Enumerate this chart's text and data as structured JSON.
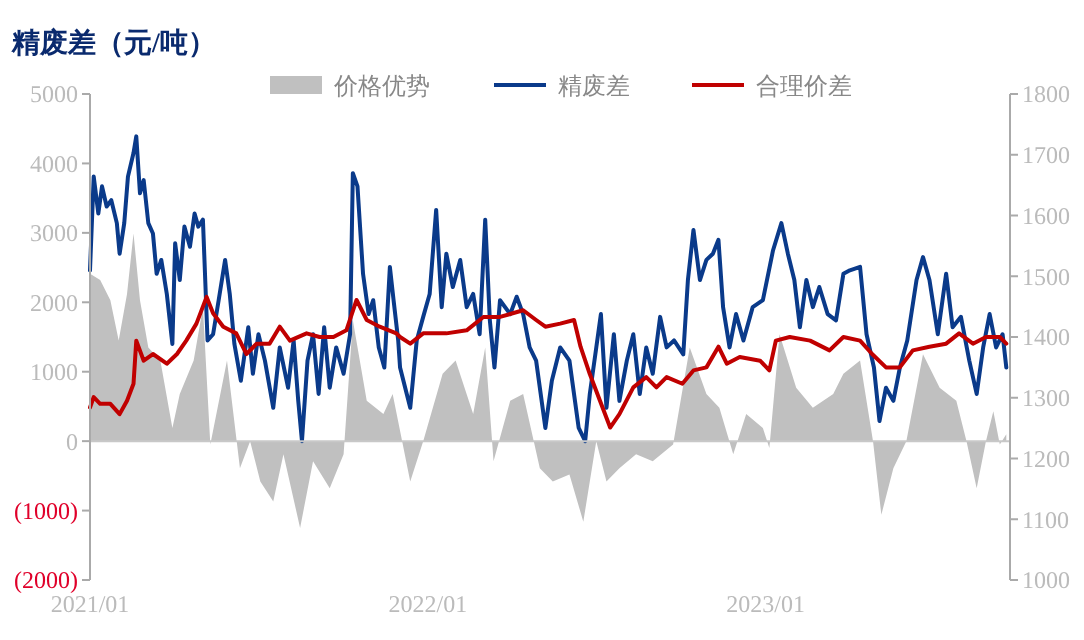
{
  "chart_data": {
    "type": "line",
    "title": "精废差（元/吨）",
    "legend": "top",
    "xlim": [
      "2021-01-01",
      "2023-09-22"
    ],
    "xticks": [
      {
        "value": "2021-01-01",
        "label": "2021/01"
      },
      {
        "value": "2022-01-01",
        "label": "2022/01"
      },
      {
        "value": "2023-01-01",
        "label": "2023/01"
      }
    ],
    "ylim": [
      -2000,
      5000
    ],
    "yticks": [
      {
        "value": -2000,
        "label": "(2000)"
      },
      {
        "value": -1000,
        "label": "(1000)"
      },
      0,
      1000,
      2000,
      3000,
      4000,
      5000
    ],
    "y2lim": [
      1000,
      1800
    ],
    "y2ticks": [
      1000,
      1100,
      1200,
      1300,
      1400,
      1500,
      1600,
      1700,
      1800
    ],
    "series": [
      {
        "name": "价格优势",
        "type": "area",
        "color": "#c0c0c0",
        "x": [
          "2021-01-01",
          "2021-01-12",
          "2021-01-23",
          "2021-02-01",
          "2021-02-10",
          "2021-02-17",
          "2021-02-24",
          "2021-03-05",
          "2021-03-18",
          "2021-03-31",
          "2021-04-08",
          "2021-04-23",
          "2021-05-03",
          "2021-05-11",
          "2021-05-29",
          "2021-06-12",
          "2021-06-23",
          "2021-07-04",
          "2021-07-18",
          "2021-07-29",
          "2021-08-16",
          "2021-08-30",
          "2021-09-17",
          "2021-10-02",
          "2021-10-12",
          "2021-10-27",
          "2021-11-14",
          "2021-11-24",
          "2021-12-13",
          "2021-12-27",
          "2022-01-17",
          "2022-01-31",
          "2022-02-19",
          "2022-03-04",
          "2022-03-13",
          "2022-03-31",
          "2022-04-14",
          "2022-05-02",
          "2022-05-16",
          "2022-06-03",
          "2022-06-18",
          "2022-07-02",
          "2022-07-13",
          "2022-07-27",
          "2022-08-14",
          "2022-09-01",
          "2022-09-23",
          "2022-10-11",
          "2022-10-29",
          "2022-11-12",
          "2022-11-27",
          "2022-12-11",
          "2022-12-29",
          "2023-01-05",
          "2023-01-16",
          "2023-02-03",
          "2023-02-21",
          "2023-03-15",
          "2023-03-26",
          "2023-04-13",
          "2023-04-27",
          "2023-05-06",
          "2023-05-19",
          "2023-06-02",
          "2023-06-20",
          "2023-07-08",
          "2023-07-26",
          "2023-08-06",
          "2023-08-17",
          "2023-08-27",
          "2023-09-04",
          "2023-09-11",
          "2023-09-18"
        ],
        "values": [
          2410,
          2320,
          2030,
          1450,
          2120,
          2990,
          2030,
          1350,
          1160,
          190,
          680,
          1160,
          1930,
          -50,
          1160,
          -390,
          0,
          -580,
          -870,
          -190,
          -1250,
          -290,
          -680,
          -190,
          1740,
          580,
          390,
          680,
          -580,
          0,
          970,
          1160,
          390,
          1350,
          -290,
          580,
          680,
          -390,
          -580,
          -480,
          -1160,
          0,
          -580,
          -390,
          -190,
          -290,
          -50,
          1350,
          680,
          480,
          -190,
          390,
          190,
          -100,
          1540,
          770,
          480,
          680,
          970,
          1160,
          0,
          -1060,
          -390,
          0,
          1250,
          770,
          580,
          0,
          -680,
          0,
          430,
          -50,
          100
        ]
      },
      {
        "name": "精废差",
        "color": "#0a3a8a",
        "x": [
          "2021-01-01",
          "2021-01-05",
          "2021-01-10",
          "2021-01-14",
          "2021-01-19",
          "2021-01-24",
          "2021-01-30",
          "2021-02-02",
          "2021-02-07",
          "2021-02-11",
          "2021-02-17",
          "2021-02-20",
          "2021-02-24",
          "2021-02-28",
          "2021-03-05",
          "2021-03-10",
          "2021-03-14",
          "2021-03-19",
          "2021-03-25",
          "2021-03-31",
          "2021-04-03",
          "2021-04-08",
          "2021-04-13",
          "2021-04-19",
          "2021-04-24",
          "2021-04-28",
          "2021-05-03",
          "2021-05-08",
          "2021-05-14",
          "2021-05-20",
          "2021-05-27",
          "2021-06-01",
          "2021-06-06",
          "2021-06-13",
          "2021-06-21",
          "2021-06-26",
          "2021-07-02",
          "2021-07-09",
          "2021-07-18",
          "2021-07-25",
          "2021-08-03",
          "2021-08-09",
          "2021-08-14",
          "2021-08-18",
          "2021-08-24",
          "2021-08-30",
          "2021-09-05",
          "2021-09-11",
          "2021-09-17",
          "2021-09-24",
          "2021-10-02",
          "2021-10-09",
          "2021-10-12",
          "2021-10-17",
          "2021-10-23",
          "2021-10-29",
          "2021-11-03",
          "2021-11-09",
          "2021-11-15",
          "2021-11-21",
          "2021-11-25",
          "2021-11-30",
          "2021-12-02",
          "2021-12-13",
          "2021-12-20",
          "2021-12-27",
          "2022-01-03",
          "2022-01-10",
          "2022-01-16",
          "2022-01-21",
          "2022-01-28",
          "2022-02-05",
          "2022-02-12",
          "2022-02-19",
          "2022-02-26",
          "2022-03-04",
          "2022-03-09",
          "2022-03-14",
          "2022-03-20",
          "2022-03-31",
          "2022-04-07",
          "2022-04-14",
          "2022-04-21",
          "2022-04-28",
          "2022-05-08",
          "2022-05-15",
          "2022-05-24",
          "2022-06-03",
          "2022-06-13",
          "2022-06-20",
          "2022-06-25",
          "2022-07-02",
          "2022-07-07",
          "2022-07-13",
          "2022-07-21",
          "2022-07-27",
          "2022-08-04",
          "2022-08-11",
          "2022-08-18",
          "2022-08-25",
          "2022-09-01",
          "2022-09-09",
          "2022-09-16",
          "2022-09-24",
          "2022-10-04",
          "2022-10-09",
          "2022-10-15",
          "2022-10-22",
          "2022-10-29",
          "2022-11-05",
          "2022-11-11",
          "2022-11-16",
          "2022-11-23",
          "2022-11-30",
          "2022-12-08",
          "2022-12-18",
          "2022-12-29",
          "2023-01-09",
          "2023-01-18",
          "2023-01-25",
          "2023-02-01",
          "2023-02-07",
          "2023-02-14",
          "2023-02-21",
          "2023-02-28",
          "2023-03-09",
          "2023-03-18",
          "2023-03-26",
          "2023-04-02",
          "2023-04-13",
          "2023-04-20",
          "2023-04-28",
          "2023-05-04",
          "2023-05-11",
          "2023-05-19",
          "2023-05-26",
          "2023-06-03",
          "2023-06-13",
          "2023-06-20",
          "2023-06-27",
          "2023-07-06",
          "2023-07-15",
          "2023-07-22",
          "2023-07-31",
          "2023-08-09",
          "2023-08-17",
          "2023-08-24",
          "2023-08-31",
          "2023-09-07",
          "2023-09-14",
          "2023-09-18"
        ],
        "values": [
          2460,
          3810,
          3280,
          3670,
          3380,
          3470,
          3140,
          2700,
          3140,
          3810,
          4150,
          4390,
          3570,
          3760,
          3140,
          2990,
          2410,
          2610,
          2120,
          1400,
          2850,
          2320,
          3090,
          2800,
          3280,
          3090,
          3190,
          1450,
          1540,
          2030,
          2610,
          2120,
          1400,
          870,
          1640,
          970,
          1540,
          1160,
          480,
          1350,
          770,
          1450,
          580,
          0,
          1160,
          1540,
          680,
          1640,
          770,
          1350,
          970,
          1540,
          3860,
          3670,
          2410,
          1830,
          2030,
          1350,
          1060,
          2510,
          2030,
          1450,
          1060,
          480,
          1450,
          1790,
          2120,
          3330,
          1930,
          2700,
          2220,
          2610,
          1930,
          2120,
          1540,
          3190,
          1740,
          1060,
          2030,
          1830,
          2080,
          1830,
          1350,
          1160,
          190,
          870,
          1350,
          1160,
          190,
          0,
          680,
          1350,
          1830,
          480,
          1540,
          580,
          1160,
          1540,
          680,
          1350,
          970,
          1790,
          1350,
          1450,
          1250,
          2320,
          3040,
          2320,
          2610,
          2700,
          2900,
          1930,
          1350,
          1830,
          1450,
          1930,
          2030,
          2750,
          3140,
          2700,
          2320,
          1640,
          2320,
          1930,
          2220,
          1830,
          1740,
          2410,
          2460,
          2510,
          1540,
          1060,
          290,
          770,
          580,
          1060,
          1450,
          2320,
          2650,
          2320,
          1540,
          2410,
          1640,
          1790,
          1160,
          680,
          1350,
          1830,
          1350,
          1540,
          1060
        ]
      },
      {
        "name": "合理价差",
        "axis": "y2",
        "color": "#c00000",
        "x": [
          "2021-01-01",
          "2021-01-05",
          "2021-01-12",
          "2021-01-23",
          "2021-02-02",
          "2021-02-10",
          "2021-02-17",
          "2021-02-20",
          "2021-02-28",
          "2021-03-10",
          "2021-03-25",
          "2021-04-05",
          "2021-04-15",
          "2021-04-26",
          "2021-05-07",
          "2021-05-14",
          "2021-05-25",
          "2021-06-08",
          "2021-06-19",
          "2021-06-30",
          "2021-07-14",
          "2021-07-25",
          "2021-08-05",
          "2021-08-23",
          "2021-09-06",
          "2021-09-21",
          "2021-10-05",
          "2021-10-16",
          "2021-10-27",
          "2021-11-10",
          "2021-11-28",
          "2021-12-02",
          "2021-12-13",
          "2021-12-27",
          "2022-01-21",
          "2022-02-12",
          "2022-03-02",
          "2022-03-20",
          "2022-04-14",
          "2022-04-28",
          "2022-05-08",
          "2022-05-24",
          "2022-06-08",
          "2022-06-15",
          "2022-06-25",
          "2022-07-06",
          "2022-07-17",
          "2022-07-27",
          "2022-08-11",
          "2022-08-25",
          "2022-09-05",
          "2022-09-16",
          "2022-10-03",
          "2022-10-15",
          "2022-10-29",
          "2022-11-11",
          "2022-11-20",
          "2022-12-04",
          "2022-12-26",
          "2023-01-05",
          "2023-01-12",
          "2023-01-27",
          "2023-02-18",
          "2023-03-11",
          "2023-03-26",
          "2023-04-13",
          "2023-04-26",
          "2023-05-11",
          "2023-05-26",
          "2023-06-09",
          "2023-06-27",
          "2023-07-15",
          "2023-07-29",
          "2023-08-13",
          "2023-08-27",
          "2023-09-11",
          "2023-09-18"
        ],
        "values": [
          1284,
          1301,
          1290,
          1290,
          1273,
          1295,
          1323,
          1394,
          1361,
          1372,
          1356,
          1372,
          1394,
          1422,
          1466,
          1439,
          1417,
          1406,
          1372,
          1389,
          1389,
          1417,
          1394,
          1406,
          1400,
          1400,
          1411,
          1461,
          1428,
          1417,
          1406,
          1400,
          1389,
          1406,
          1406,
          1411,
          1433,
          1433,
          1444,
          1428,
          1417,
          1422,
          1428,
          1384,
          1339,
          1295,
          1251,
          1273,
          1317,
          1334,
          1317,
          1334,
          1323,
          1345,
          1350,
          1384,
          1356,
          1367,
          1361,
          1345,
          1394,
          1400,
          1394,
          1378,
          1400,
          1394,
          1372,
          1350,
          1350,
          1378,
          1384,
          1389,
          1406,
          1389,
          1400,
          1400,
          1389
        ]
      }
    ]
  }
}
